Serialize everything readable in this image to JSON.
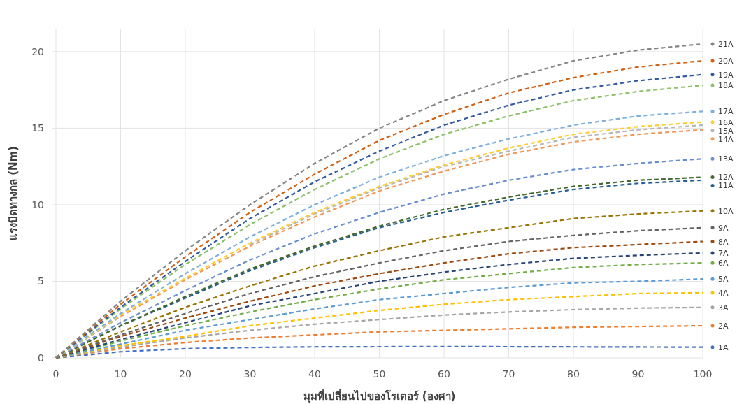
{
  "chart_data": {
    "type": "line",
    "xlabel": "มุมที่เปลี่ยนไปของโรเตอร์ (องศา)",
    "ylabel": "แรงบิดทางกล (Nm)",
    "x": [
      0,
      10,
      20,
      30,
      40,
      50,
      60,
      70,
      80,
      90,
      100
    ],
    "xlim": [
      0,
      100
    ],
    "xticks": [
      0,
      10,
      20,
      30,
      40,
      50,
      60,
      70,
      80,
      90,
      100
    ],
    "ylim": [
      0,
      21.5
    ],
    "yticks": [
      0,
      5,
      10,
      15,
      20
    ],
    "grid": true,
    "legend": "right",
    "marker": "none",
    "line_style": "dashed",
    "series": [
      {
        "name": "1A",
        "color": "#4472c4",
        "values": [
          0,
          0.4,
          0.6,
          0.68,
          0.72,
          0.73,
          0.74,
          0.73,
          0.72,
          0.71,
          0.7
        ]
      },
      {
        "name": "2A",
        "color": "#ed7d31",
        "values": [
          0,
          0.6,
          1.0,
          1.3,
          1.5,
          1.7,
          1.8,
          1.9,
          2.0,
          2.05,
          2.1
        ]
      },
      {
        "name": "3A",
        "color": "#a5a5a5",
        "values": [
          0,
          0.7,
          1.3,
          1.8,
          2.2,
          2.5,
          2.8,
          3.0,
          3.15,
          3.25,
          3.3
        ]
      },
      {
        "name": "4A",
        "color": "#ffc000",
        "values": [
          0,
          0.8,
          1.4,
          2.1,
          2.6,
          3.1,
          3.5,
          3.8,
          4.0,
          4.2,
          4.25
        ]
      },
      {
        "name": "5A",
        "color": "#5b9bd5",
        "values": [
          0,
          0.9,
          1.8,
          2.5,
          3.2,
          3.8,
          4.2,
          4.6,
          4.9,
          5.0,
          5.15
        ]
      },
      {
        "name": "6A",
        "color": "#70ad47",
        "values": [
          0,
          1.1,
          2.1,
          3.0,
          3.8,
          4.5,
          5.1,
          5.5,
          5.9,
          6.1,
          6.2
        ]
      },
      {
        "name": "7A",
        "color": "#264478",
        "values": [
          0,
          1.2,
          2.3,
          3.4,
          4.2,
          5.0,
          5.6,
          6.1,
          6.5,
          6.7,
          6.85
        ]
      },
      {
        "name": "8A",
        "color": "#9e480e",
        "values": [
          0,
          1.4,
          2.6,
          3.7,
          4.7,
          5.5,
          6.2,
          6.8,
          7.2,
          7.4,
          7.6
        ]
      },
      {
        "name": "9A",
        "color": "#636363",
        "values": [
          0,
          1.5,
          2.9,
          4.2,
          5.3,
          6.2,
          7.0,
          7.6,
          8.0,
          8.3,
          8.5
        ]
      },
      {
        "name": "10A",
        "color": "#997300",
        "values": [
          0,
          1.7,
          3.3,
          4.7,
          6.0,
          7.0,
          7.9,
          8.5,
          9.1,
          9.4,
          9.6
        ]
      },
      {
        "name": "11A",
        "color": "#255e91",
        "values": [
          0,
          2.1,
          3.9,
          5.7,
          7.2,
          8.5,
          9.5,
          10.3,
          11.0,
          11.4,
          11.6
        ]
      },
      {
        "name": "12A",
        "color": "#43682b",
        "values": [
          0,
          2.1,
          4.0,
          5.8,
          7.3,
          8.6,
          9.7,
          10.5,
          11.2,
          11.6,
          11.8
        ]
      },
      {
        "name": "13A",
        "color": "#698ed0",
        "values": [
          0,
          2.3,
          4.4,
          6.4,
          8.1,
          9.5,
          10.7,
          11.6,
          12.3,
          12.7,
          13.0
        ]
      },
      {
        "name": "14A",
        "color": "#f1975a",
        "values": [
          0,
          2.7,
          5.1,
          7.3,
          9.2,
          10.9,
          12.2,
          13.3,
          14.1,
          14.6,
          14.9
        ]
      },
      {
        "name": "15A",
        "color": "#b7b7b7",
        "values": [
          0,
          2.7,
          null,
          7.4,
          9.4,
          11.1,
          12.5,
          13.5,
          14.4,
          14.9,
          15.2
        ]
      },
      {
        "name": "16A",
        "color": "#ffcd33",
        "values": [
          0,
          2.8,
          5.2,
          7.5,
          9.5,
          11.2,
          12.6,
          13.7,
          14.6,
          15.1,
          15.4
        ]
      },
      {
        "name": "17A",
        "color": "#7cafdd",
        "values": [
          0,
          2.9,
          5.5,
          7.9,
          10.0,
          11.8,
          13.2,
          14.3,
          15.2,
          15.8,
          16.1
        ]
      },
      {
        "name": "18A",
        "color": "#8cc168",
        "values": [
          0,
          3.2,
          6.1,
          8.7,
          11.0,
          13.0,
          14.6,
          15.8,
          16.8,
          17.4,
          17.8
        ]
      },
      {
        "name": "19A",
        "color": "#335aa1",
        "values": [
          0,
          3.3,
          6.3,
          9.1,
          11.5,
          13.5,
          15.2,
          16.5,
          17.5,
          18.1,
          18.5
        ]
      },
      {
        "name": "20A",
        "color": "#d26012",
        "values": [
          0,
          3.5,
          6.6,
          9.5,
          12.0,
          14.2,
          15.9,
          17.3,
          18.3,
          19.0,
          19.4
        ]
      },
      {
        "name": "21A",
        "color": "#848484",
        "values": [
          0,
          3.7,
          7.0,
          10.0,
          12.7,
          15.0,
          16.8,
          18.2,
          19.4,
          20.1,
          20.5
        ]
      }
    ]
  }
}
